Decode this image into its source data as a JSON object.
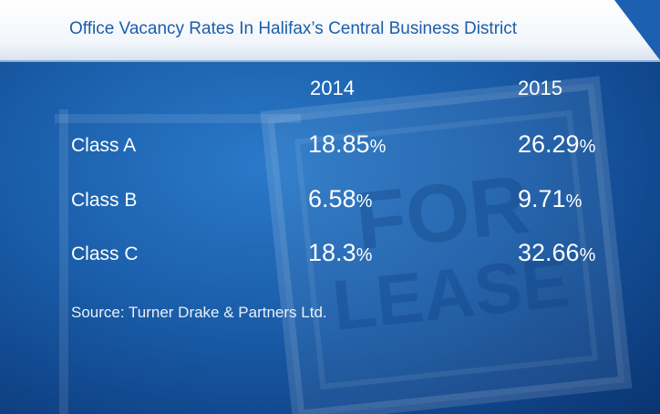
{
  "title": "Office Vacancy Rates In Halifax’s Central Business District",
  "source": "Source: Turner Drake & Partners Ltd.",
  "background_sign_text": "FOR LEASE",
  "colors": {
    "title": "#1c5ea8",
    "background": "#1a5da9",
    "text": "#ffffff"
  },
  "chart_data": {
    "type": "table",
    "title": "Office Vacancy Rates In Halifax’s Central Business District",
    "columns": [
      "2014",
      "2015"
    ],
    "rows": [
      {
        "label": "Class A",
        "values": [
          "18.85",
          "26.29"
        ],
        "unit": "%"
      },
      {
        "label": "Class B",
        "values": [
          "6.58",
          "9.71"
        ],
        "unit": "%"
      },
      {
        "label": "Class C",
        "values": [
          "18.3",
          "32.66"
        ],
        "unit": "%"
      }
    ],
    "source": "Source: Turner Drake & Partners Ltd."
  }
}
